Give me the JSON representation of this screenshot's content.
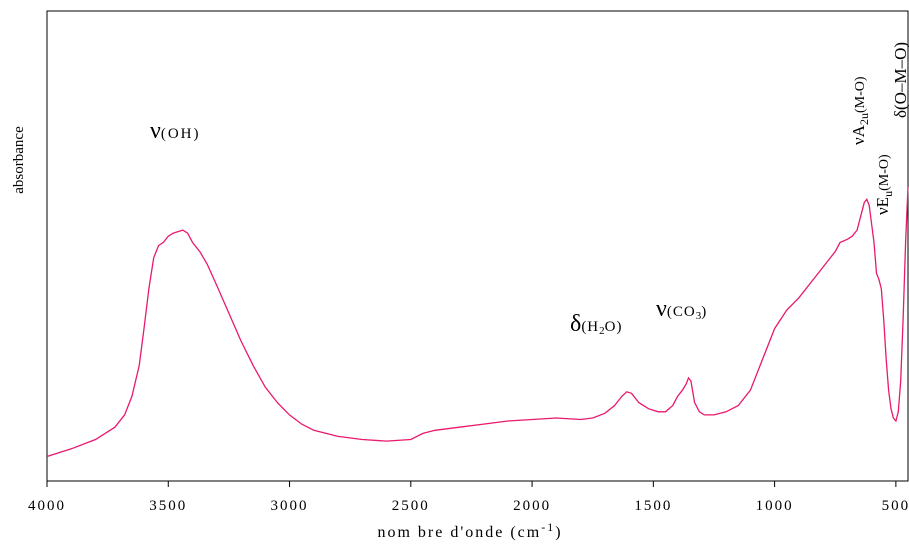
{
  "chart_data": {
    "type": "line",
    "title": "",
    "xlabel": "nombre d'onde (cm-1)",
    "xlabel_main": "nom bre d'onde (cm",
    "xlabel_sup": "-1",
    "xlabel_close": ")",
    "ylabel": "absorbance",
    "xlim": [
      4000,
      450
    ],
    "x_reversed": true,
    "ylim": [
      0,
      1
    ],
    "grid": false,
    "legend": "none",
    "x_ticks": [
      4000,
      3500,
      3000,
      2500,
      2000,
      1500,
      1000,
      500
    ],
    "x_tick_labels": [
      "4000",
      "3500",
      "3000",
      "2500",
      "2000",
      "1500",
      "1000",
      "500"
    ],
    "line_color": "#e8196e",
    "series": [
      {
        "x": [
          4000,
          3900,
          3800,
          3720,
          3680,
          3650,
          3620,
          3600,
          3580,
          3560,
          3540,
          3520,
          3500,
          3480,
          3460,
          3440,
          3420,
          3400,
          3370,
          3340,
          3300,
          3250,
          3200,
          3150,
          3100,
          3050,
          3000,
          2950,
          2900,
          2800,
          2700,
          2600,
          2500,
          2450,
          2400,
          2300,
          2200,
          2100,
          2000,
          1900,
          1800,
          1750,
          1700,
          1660,
          1630,
          1610,
          1590,
          1560,
          1520,
          1480,
          1450,
          1420,
          1400,
          1380,
          1365,
          1355,
          1345,
          1330,
          1310,
          1290,
          1270,
          1250,
          1200,
          1150,
          1100,
          1050,
          1000,
          950,
          900,
          880,
          850,
          800,
          750,
          730,
          700,
          680,
          660,
          640,
          630,
          620,
          610,
          600,
          590,
          580,
          570,
          560,
          550,
          540,
          530,
          520,
          510,
          500,
          490,
          480,
          470,
          460,
          450
        ],
        "y": [
          0.005,
          0.03,
          0.06,
          0.1,
          0.14,
          0.2,
          0.3,
          0.42,
          0.55,
          0.65,
          0.69,
          0.7,
          0.72,
          0.73,
          0.735,
          0.74,
          0.73,
          0.7,
          0.67,
          0.63,
          0.56,
          0.47,
          0.38,
          0.3,
          0.23,
          0.18,
          0.14,
          0.11,
          0.09,
          0.07,
          0.06,
          0.055,
          0.06,
          0.08,
          0.09,
          0.1,
          0.11,
          0.12,
          0.125,
          0.13,
          0.125,
          0.13,
          0.145,
          0.17,
          0.2,
          0.215,
          0.21,
          0.18,
          0.16,
          0.15,
          0.15,
          0.17,
          0.2,
          0.22,
          0.24,
          0.26,
          0.25,
          0.18,
          0.15,
          0.14,
          0.14,
          0.14,
          0.15,
          0.17,
          0.22,
          0.32,
          0.42,
          0.48,
          0.52,
          0.54,
          0.57,
          0.62,
          0.67,
          0.7,
          0.71,
          0.72,
          0.74,
          0.8,
          0.83,
          0.84,
          0.82,
          0.76,
          0.7,
          0.6,
          0.58,
          0.55,
          0.45,
          0.32,
          0.22,
          0.16,
          0.13,
          0.12,
          0.15,
          0.25,
          0.45,
          0.7,
          0.88
        ]
      }
    ],
    "annotations": [
      {
        "label": "ν(OH)"
      },
      {
        "label": "δ(H2O)"
      },
      {
        "label": "ν(CO3)"
      },
      {
        "label": "νA2u(M-O)"
      },
      {
        "label": "νEu(M-O)"
      },
      {
        "label": "δ(O-M-O)"
      }
    ]
  },
  "annotation_text": {
    "oh_sym": "ν",
    "oh_paren": "(OH)",
    "h2o_sym": "δ",
    "h2o_open": "(H",
    "h2o_sub": "2",
    "h2o_close": "O)",
    "co3_sym": "ν",
    "co3_open": "(CO",
    "co3_sub": "3",
    "co3_close": ")",
    "a2u_sym": "νA",
    "a2u_sub": "2u",
    "a2u_rest": "(M-O)",
    "eu_sym": "νE",
    "eu_sub": "u",
    "eu_rest": "(M-O)",
    "omo": "δ(O–M–O)"
  }
}
